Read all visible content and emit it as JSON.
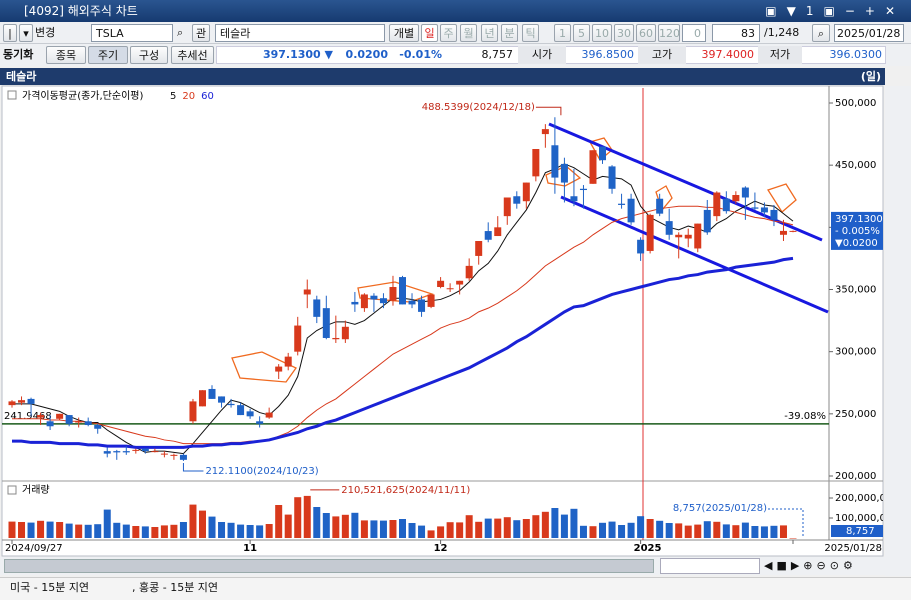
{
  "window": {
    "title": "[4092] 해외주식 차트"
  },
  "toolbar": {
    "mode": "변경",
    "symbol": "TSLA",
    "watch": "관",
    "name": "테슬라",
    "individual": "개별",
    "periods": [
      "일",
      "주",
      "월",
      "년",
      "분",
      "틱"
    ],
    "intervals": [
      "1",
      "5",
      "10",
      "30",
      "60",
      "120"
    ],
    "interval_input": "0",
    "count": "83",
    "total": "/1,248",
    "date": "2025/01/28"
  },
  "quote_bar": {
    "sync": "동기화",
    "buttons": [
      "종목",
      "주기",
      "구성",
      "추세선"
    ],
    "price": "397.1300 ▼",
    "change": "0.0200",
    "change_pct": "-0.01%",
    "volume": "8,757",
    "open_label": "시가",
    "open": "396.8500",
    "high_label": "고가",
    "high": "397.4000",
    "low_label": "저가",
    "low": "396.0300"
  },
  "status": [
    "미국 - 15분 지연",
    ", 홍콩 - 15분 지연"
  ],
  "chart_data": [
    {
      "type": "candlestick",
      "title": "테슬라",
      "period": "(일)",
      "legend_title": "가격이동평균(종가,단순이평)",
      "categories": [
        "2024/09/27",
        null,
        null,
        null,
        null,
        null,
        null,
        null,
        null,
        null,
        null,
        null,
        null,
        null,
        null,
        null,
        null,
        null,
        null,
        null,
        null,
        null,
        null,
        null,
        null,
        "11",
        null,
        null,
        null,
        null,
        null,
        null,
        null,
        null,
        null,
        null,
        null,
        null,
        null,
        null,
        null,
        null,
        null,
        null,
        null,
        "12",
        null,
        null,
        null,
        null,
        null,
        null,
        null,
        null,
        null,
        null,
        null,
        null,
        null,
        null,
        null,
        null,
        null,
        null,
        null,
        null,
        "2025",
        null,
        null,
        null,
        null,
        null,
        null,
        null,
        null,
        null,
        null,
        null,
        null,
        null,
        null,
        null,
        "2025/01/28"
      ],
      "open": [
        257,
        259,
        262,
        247,
        244,
        246,
        249,
        243,
        244,
        241,
        220,
        220,
        220,
        221,
        222,
        220,
        218,
        217,
        217,
        244,
        256,
        270,
        264,
        258,
        257,
        252,
        244,
        247,
        284,
        288,
        300,
        346,
        342,
        335,
        310,
        310,
        340,
        335,
        345,
        343,
        341,
        360,
        341,
        342,
        336,
        352,
        351,
        354,
        359,
        377,
        397,
        393,
        409,
        425,
        421,
        441,
        475,
        466,
        451,
        425,
        431,
        435,
        465,
        449,
        419,
        423,
        390,
        381,
        423,
        405,
        392,
        391,
        383,
        414,
        409,
        423,
        421,
        432,
        416,
        416,
        414,
        394,
        396.85
      ],
      "high": [
        261,
        264,
        263,
        251,
        249,
        250,
        249,
        247,
        247,
        242,
        223,
        221,
        224,
        222,
        222,
        222,
        220,
        218,
        218,
        262,
        269,
        273,
        264,
        262,
        259,
        254,
        248,
        255,
        290,
        299,
        328,
        358,
        345,
        345,
        329,
        325,
        348,
        347,
        347,
        347,
        361,
        361,
        347,
        345,
        346,
        360,
        355,
        357,
        375,
        389,
        404,
        409,
        424,
        429,
        436,
        463,
        483,
        488.5399,
        456,
        447,
        434,
        462,
        465,
        450,
        427,
        427,
        392,
        411,
        427,
        415,
        396,
        399,
        403,
        422,
        429,
        429,
        429,
        433,
        428,
        420,
        418,
        406,
        397.4
      ],
      "low": [
        255,
        257,
        248,
        241,
        237,
        245,
        240,
        239,
        240,
        234,
        215,
        213,
        217,
        218,
        218,
        219,
        215,
        213,
        212.11,
        242,
        256,
        262,
        255,
        255,
        249,
        246,
        239,
        246,
        278,
        285,
        297,
        335,
        323,
        310,
        307,
        307,
        332,
        332,
        332,
        335,
        337,
        338,
        335,
        328,
        335,
        351,
        348,
        346,
        357,
        370,
        388,
        393,
        402,
        415,
        415,
        437,
        464,
        427,
        420,
        417,
        415,
        435,
        451,
        427,
        415,
        402,
        373,
        379,
        409,
        390,
        375,
        384,
        380,
        394,
        405,
        411,
        419,
        406,
        414,
        408,
        401,
        389,
        396.03
      ],
      "close": [
        260,
        261,
        258,
        249,
        240,
        250,
        242,
        244,
        241,
        238,
        218,
        219,
        219,
        221,
        220,
        220,
        218,
        217,
        213,
        260,
        269,
        262,
        259,
        257,
        249,
        248,
        242,
        251,
        288,
        296,
        321,
        350,
        328,
        311,
        311,
        320,
        338,
        346,
        342,
        339,
        352,
        338,
        338,
        332,
        346,
        357,
        351,
        357,
        369,
        389,
        390,
        400,
        424,
        419,
        436,
        463,
        479,
        440,
        436,
        421,
        430,
        462,
        454,
        431,
        418,
        404,
        379,
        410,
        411,
        394,
        394,
        394,
        403,
        396,
        428,
        413,
        426,
        424,
        415,
        412,
        406,
        397.11,
        397.13
      ],
      "up_color": "#d8391c",
      "down_color": "#1f63c6",
      "series": [
        {
          "name": "5",
          "color": "#111111",
          "width": 1,
          "values": [
            258,
            258,
            258,
            256,
            254,
            252,
            248,
            245,
            243,
            243,
            237,
            232,
            227,
            223,
            219,
            220,
            220,
            219,
            218,
            226,
            235,
            244,
            253,
            261,
            259,
            255,
            251,
            249,
            256,
            265,
            280,
            311,
            317,
            321,
            324,
            324,
            322,
            325,
            331,
            337,
            343,
            343,
            342,
            340,
            341,
            342,
            345,
            349,
            356,
            365,
            371,
            381,
            394,
            404,
            414,
            428,
            444,
            447,
            451,
            448,
            443,
            438,
            441,
            440,
            439,
            434,
            417,
            408,
            404,
            400,
            398,
            401,
            399,
            396,
            403,
            407,
            413,
            417,
            421,
            418,
            417,
            411,
            405
          ]
        },
        {
          "name": "20",
          "color": "#d8391c",
          "width": 1,
          "values": [
            246,
            246,
            246,
            246,
            245,
            245,
            244,
            244,
            243,
            242,
            240,
            238,
            236,
            234,
            232,
            231,
            229,
            228,
            226,
            226,
            226,
            226,
            226,
            227,
            227,
            228,
            228,
            229,
            232,
            235,
            240,
            247,
            253,
            258,
            262,
            268,
            274,
            280,
            286,
            292,
            298,
            302,
            306,
            310,
            314,
            319,
            322,
            324,
            327,
            332,
            335,
            339,
            344,
            349,
            355,
            362,
            369,
            374,
            379,
            384,
            388,
            394,
            399,
            404,
            407,
            409,
            411,
            413,
            415,
            416,
            417,
            417,
            417,
            416,
            416,
            414,
            412,
            410,
            408,
            407,
            405,
            404,
            402
          ]
        },
        {
          "name": "60",
          "color": "#1a22d6",
          "width": 3,
          "values": [
            228,
            228,
            227,
            227,
            227,
            226,
            226,
            226,
            225,
            225,
            224,
            224,
            224,
            223,
            223,
            223,
            223,
            223,
            223,
            224,
            224,
            225,
            225,
            226,
            226,
            227,
            228,
            229,
            231,
            233,
            235,
            238,
            240,
            243,
            245,
            248,
            251,
            254,
            257,
            260,
            263,
            266,
            269,
            272,
            275,
            278,
            281,
            284,
            287,
            291,
            295,
            299,
            303,
            308,
            312,
            317,
            322,
            327,
            332,
            336,
            337,
            340,
            343,
            346,
            348,
            350,
            352,
            354,
            356,
            358,
            359,
            361,
            362,
            364,
            365,
            366,
            368,
            369,
            370,
            371,
            372,
            374,
            375
          ]
        }
      ],
      "ylim": [
        196.78,
        513.67
      ],
      "yticks": [
        {
          "value": 500,
          "label": "500,000"
        },
        {
          "value": 450,
          "label": "450,000"
        },
        {
          "value": 400,
          "label": "400,000"
        },
        {
          "value": 350,
          "label": "350,000"
        },
        {
          "value": 300,
          "label": "300,000"
        },
        {
          "value": 250,
          "label": "250,000"
        },
        {
          "value": 200,
          "label": "200,000"
        }
      ],
      "grid": false,
      "max_label": "488.5399(2024/12/18)",
      "min_label": "212.1100(2024/10/23)",
      "hline": {
        "value": 241.9468,
        "change": "-39.08%"
      },
      "last_box": [
        "397.1300",
        "- 0.005%",
        "▼0.0200"
      ]
    },
    {
      "type": "bar",
      "title": "거래량",
      "values": [
        82000000,
        80000000,
        77000000,
        86000000,
        82000000,
        80000000,
        72000000,
        67000000,
        66000000,
        69000000,
        142000000,
        76000000,
        67000000,
        60000000,
        58000000,
        55000000,
        63000000,
        66000000,
        80000000,
        167000000,
        137000000,
        107000000,
        80000000,
        76000000,
        67000000,
        65000000,
        63000000,
        70000000,
        165000000,
        117000000,
        204000000,
        210521625,
        155000000,
        125000000,
        108000000,
        116000000,
        126000000,
        88000000,
        88000000,
        87000000,
        90000000,
        95000000,
        75000000,
        62000000,
        38000000,
        58000000,
        79000000,
        78000000,
        114000000,
        81000000,
        97000000,
        97000000,
        104000000,
        89000000,
        95000000,
        114000000,
        131000000,
        150000000,
        117000000,
        146000000,
        61000000,
        59000000,
        76000000,
        82000000,
        65000000,
        76000000,
        109000000,
        95000000,
        86000000,
        75000000,
        73000000,
        62000000,
        67000000,
        84000000,
        81000000,
        68000000,
        64000000,
        77000000,
        60000000,
        58000000,
        61000000,
        63000000,
        8757
      ],
      "ylim": [
        0,
        260000000
      ],
      "yticks": [
        {
          "value": 100000000,
          "label": "100,000,000"
        },
        {
          "value": 200000000,
          "label": "200,000,000"
        }
      ],
      "max_label": "210,521,625(2024/11/11)",
      "last_label": "8,757(2025/01/28)",
      "last_box": "8,757"
    }
  ]
}
